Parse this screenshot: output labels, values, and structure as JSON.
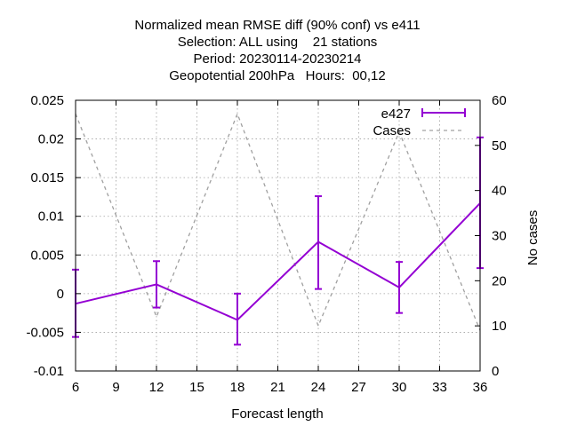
{
  "chart_data": {
    "type": "line",
    "title_lines": [
      "Normalized mean RMSE diff (90% conf) vs e411",
      "Selection: ALL using    21 stations",
      "Period: 20230114-20230214",
      "Geopotential 200hPa   Hours:  00,12"
    ],
    "xlabel": "Forecast length",
    "ylabel": "",
    "y2label": "No cases",
    "xlim": [
      6,
      36
    ],
    "ylim": [
      -0.01,
      0.025
    ],
    "y2lim": [
      0,
      60
    ],
    "xticks": [
      "6",
      "9",
      "12",
      "15",
      "18",
      "21",
      "24",
      "27",
      "30",
      "33",
      "36"
    ],
    "yticks": [
      "-0.01",
      "-0.005",
      "0",
      "0.005",
      "0.01",
      "0.015",
      "0.02",
      "0.025"
    ],
    "y2ticks": [
      "0",
      "10",
      "20",
      "30",
      "40",
      "50",
      "60"
    ],
    "grid": true,
    "legend_position": "top-right",
    "x": [
      6,
      12,
      18,
      24,
      30,
      36
    ],
    "series": [
      {
        "name": "e427",
        "axis": "y1",
        "color": "#9400d3",
        "style": "errorbar-line",
        "values": [
          -0.0013,
          0.0012,
          -0.0034,
          0.0067,
          0.0008,
          0.0117
        ],
        "err_low": [
          -0.0056,
          -0.0018,
          -0.0066,
          0.0006,
          -0.0025,
          0.0033
        ],
        "err_high": [
          0.0031,
          0.0042,
          0.0,
          0.0126,
          0.0041,
          0.0202
        ]
      },
      {
        "name": "Cases",
        "axis": "y2",
        "color": "#a0a0a0",
        "style": "dashed",
        "values": [
          57,
          12,
          57,
          10,
          53,
          9
        ]
      }
    ]
  }
}
